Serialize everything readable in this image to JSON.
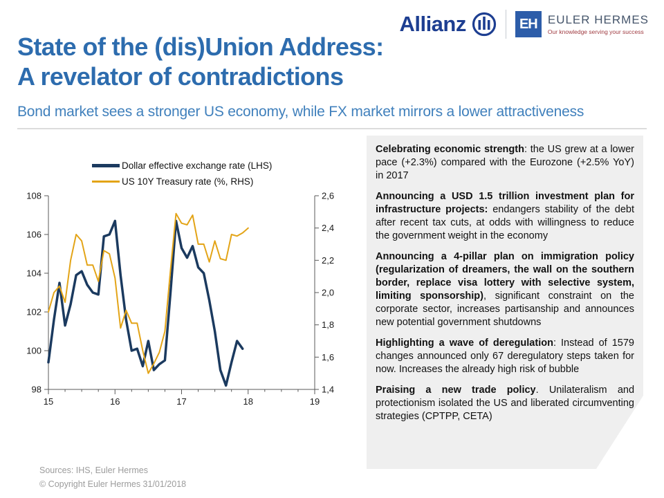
{
  "header": {
    "allianz_word": "Allianz",
    "eh_monogram": "EH",
    "eh_name": "EULER HERMES",
    "eh_tagline": "Our knowledge serving your success"
  },
  "title": {
    "line1": "State of the (dis)Union Address:",
    "line2": "A revelator of contradictions"
  },
  "subtitle": "Bond market sees a stronger US economy, while FX market mirrors a lower attractiveness",
  "bullets": [
    {
      "bold": "Celebrating economic strength",
      "rest": ": the US grew at a lower pace (+2.3%) compared with the Eurozone (+2.5% YoY) in 2017"
    },
    {
      "bold": "Announcing a USD 1.5 trillion investment plan for infrastructure projects:",
      "rest": " endangers stability of the debt after recent tax cuts, at odds with willingness to reduce the government weight in the economy"
    },
    {
      "bold": "Announcing a 4-pillar plan on immigration policy (regularization of dreamers, the wall on the southern border, replace visa lottery with selective system, limiting sponsorship)",
      "rest": ", significant constraint on the corporate sector, increases partisanship and announces new potential government shutdowns"
    },
    {
      "bold": "Highlighting a wave of deregulation",
      "rest": ": Instead of 1579 changes announced only 67 deregulatory steps taken for now. Increases the already high risk of bubble"
    },
    {
      "bold": "Praising a new trade policy",
      "rest": ". Unilateralism and protectionism isolated the US and liberated circumventing strategies (CPTPP, CETA)"
    }
  ],
  "footer": {
    "sources": "Sources: IHS, Euler Hermes",
    "copyright": "© Copyright Euler Hermes 31/01/2018"
  },
  "colors": {
    "title_blue": "#2d6cae",
    "subtitle_blue": "#4080bc",
    "allianz_blue": "#1d3e91",
    "eh_blue": "#2d5da9",
    "box_gray": "#efefef",
    "navy_line": "#1b3a5f",
    "gold_line": "#e3a417"
  },
  "chart_data": {
    "type": "line",
    "x_axis": {
      "min": 15,
      "max": 19,
      "ticks": [
        "15",
        "16",
        "17",
        "18",
        "19"
      ],
      "minor_step": 0.25
    },
    "left_axis": {
      "min": 98,
      "max": 108,
      "step": 2,
      "labels": [
        "98",
        "100",
        "102",
        "104",
        "106",
        "108"
      ]
    },
    "right_axis": {
      "min": 1.4,
      "max": 2.6,
      "step": 0.2,
      "labels": [
        "1,4",
        "1,6",
        "1,8",
        "2,0",
        "2,2",
        "2,4",
        "2,6"
      ]
    },
    "legend_position": "top",
    "grid": false,
    "series": [
      {
        "name": "Dollar effective exchange rate (LHS)",
        "axis": "left",
        "color": "#1b3a5f",
        "x_start": 15,
        "points_per_unit": 12,
        "values": [
          99.4,
          101.6,
          103.5,
          101.3,
          102.4,
          103.9,
          104.1,
          103.4,
          103.0,
          102.9,
          105.9,
          106.0,
          106.7,
          103.9,
          101.6,
          100.0,
          100.1,
          99.2,
          100.5,
          99.0,
          99.3,
          99.5,
          103.0,
          106.7,
          105.3,
          104.8,
          105.4,
          104.3,
          104.0,
          102.6,
          101.0,
          99.0,
          98.2,
          99.4,
          100.5,
          100.1
        ]
      },
      {
        "name": "US 10Y Treasury rate (%, RHS)",
        "axis": "right",
        "color": "#e3a417",
        "x_start": 15,
        "points_per_unit": 12,
        "values": [
          1.88,
          2.0,
          2.04,
          1.94,
          2.2,
          2.36,
          2.32,
          2.17,
          2.17,
          2.07,
          2.26,
          2.24,
          2.09,
          1.78,
          1.89,
          1.81,
          1.81,
          1.64,
          1.5,
          1.56,
          1.63,
          1.76,
          2.14,
          2.49,
          2.43,
          2.42,
          2.48,
          2.3,
          2.3,
          2.19,
          2.32,
          2.21,
          2.2,
          2.36,
          2.35,
          2.37,
          2.4
        ]
      }
    ]
  }
}
